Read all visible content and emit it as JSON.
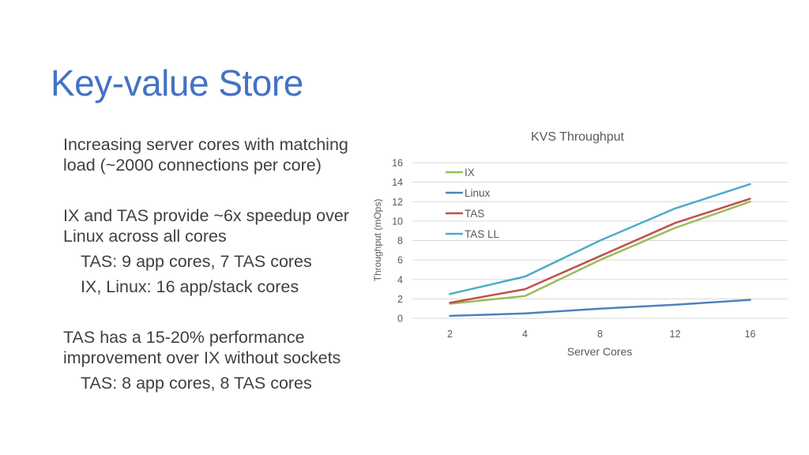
{
  "slide": {
    "title": "Key-value Store",
    "bullets": [
      "Increasing server cores with matching load (~2000 connections per core)",
      "IX and TAS provide ~6x speedup over Linux across all cores",
      "TAS: 9 app cores, 7 TAS cores",
      "IX, Linux: 16 app/stack cores",
      "TAS has a 15-20% performance improvement over IX without sockets",
      "TAS: 8 app cores, 8 TAS cores"
    ]
  },
  "chart_data": {
    "type": "line",
    "title": "KVS Throughput",
    "xlabel": "Server Cores",
    "ylabel": "Throughput (mOps)",
    "categories": [
      "2",
      "4",
      "8",
      "12",
      "16"
    ],
    "ylim": [
      0,
      16
    ],
    "yticks": [
      0,
      2,
      4,
      6,
      8,
      10,
      12,
      14,
      16
    ],
    "grid": true,
    "legend_position": "top-left",
    "series": [
      {
        "name": "IX",
        "color": "#9bbb59",
        "values": [
          1.5,
          2.3,
          6.0,
          9.3,
          12.0
        ]
      },
      {
        "name": "Linux",
        "color": "#4f81bd",
        "values": [
          0.25,
          0.5,
          1.0,
          1.4,
          1.9
        ]
      },
      {
        "name": "TAS",
        "color": "#c0504d",
        "values": [
          1.6,
          3.0,
          6.4,
          9.8,
          12.3
        ]
      },
      {
        "name": "TAS LL",
        "color": "#4bacc6",
        "values": [
          2.5,
          4.3,
          8.0,
          11.3,
          13.8
        ]
      }
    ]
  }
}
